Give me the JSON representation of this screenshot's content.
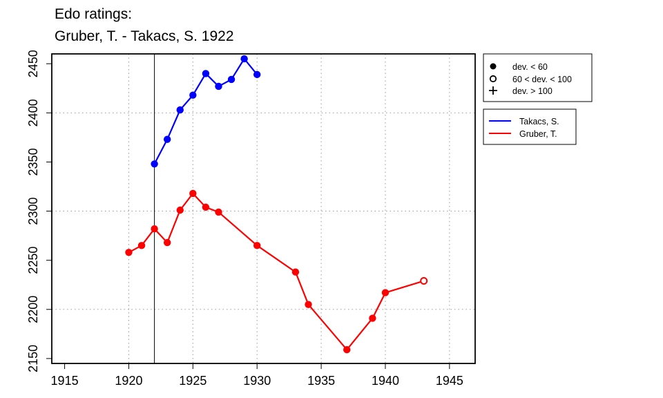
{
  "title": {
    "line1": "Edo ratings:",
    "line2": "Gruber, T. - Takacs, S. 1922"
  },
  "legend_deviation": [
    {
      "symbol": "filled-circle",
      "label": "dev. < 60"
    },
    {
      "symbol": "open-circle",
      "label": "60 < dev. < 100"
    },
    {
      "symbol": "plus",
      "label": "dev. > 100"
    }
  ],
  "legend_players": [
    {
      "name": "Takacs, S.",
      "color": "#0000ff"
    },
    {
      "name": "Gruber, T.",
      "color": "#ff0000"
    }
  ],
  "chart_data": {
    "type": "line",
    "title": "Edo ratings: Gruber, T. - Takacs, S. 1922",
    "xlabel": "",
    "ylabel": "",
    "xlim": [
      1914,
      1947
    ],
    "ylim": [
      2145,
      2460
    ],
    "xticks": [
      1915,
      1920,
      1925,
      1930,
      1935,
      1940,
      1945
    ],
    "yticks": [
      2150,
      2200,
      2250,
      2300,
      2350,
      2400,
      2450
    ],
    "grid": "dotted",
    "grid_x": [
      1920,
      1925,
      1930,
      1935,
      1940,
      1945
    ],
    "grid_y": [
      2200,
      2300,
      2400
    ],
    "reference_line_x": 1922,
    "series": [
      {
        "name": "Takacs, S.",
        "color": "#0000ff",
        "points": [
          {
            "x": 1922,
            "y": 2348,
            "marker": "filled"
          },
          {
            "x": 1923,
            "y": 2373,
            "marker": "filled"
          },
          {
            "x": 1924,
            "y": 2403,
            "marker": "filled"
          },
          {
            "x": 1925,
            "y": 2418,
            "marker": "filled"
          },
          {
            "x": 1926,
            "y": 2440,
            "marker": "filled"
          },
          {
            "x": 1927,
            "y": 2427,
            "marker": "filled"
          },
          {
            "x": 1928,
            "y": 2434,
            "marker": "filled"
          },
          {
            "x": 1929,
            "y": 2455,
            "marker": "filled"
          },
          {
            "x": 1930,
            "y": 2439,
            "marker": "filled"
          }
        ]
      },
      {
        "name": "Gruber, T.",
        "color": "#ff0000",
        "points": [
          {
            "x": 1920,
            "y": 2258,
            "marker": "filled"
          },
          {
            "x": 1921,
            "y": 2265,
            "marker": "filled"
          },
          {
            "x": 1922,
            "y": 2282,
            "marker": "filled"
          },
          {
            "x": 1923,
            "y": 2268,
            "marker": "filled"
          },
          {
            "x": 1924,
            "y": 2301,
            "marker": "filled"
          },
          {
            "x": 1925,
            "y": 2318,
            "marker": "filled"
          },
          {
            "x": 1926,
            "y": 2304,
            "marker": "filled"
          },
          {
            "x": 1927,
            "y": 2299,
            "marker": "filled"
          },
          {
            "x": 1930,
            "y": 2265,
            "marker": "filled"
          },
          {
            "x": 1933,
            "y": 2238,
            "marker": "filled"
          },
          {
            "x": 1934,
            "y": 2205,
            "marker": "filled"
          },
          {
            "x": 1937,
            "y": 2159,
            "marker": "filled"
          },
          {
            "x": 1939,
            "y": 2191,
            "marker": "filled"
          },
          {
            "x": 1940,
            "y": 2217,
            "marker": "filled"
          },
          {
            "x": 1943,
            "y": 2229,
            "marker": "open"
          }
        ]
      }
    ]
  }
}
